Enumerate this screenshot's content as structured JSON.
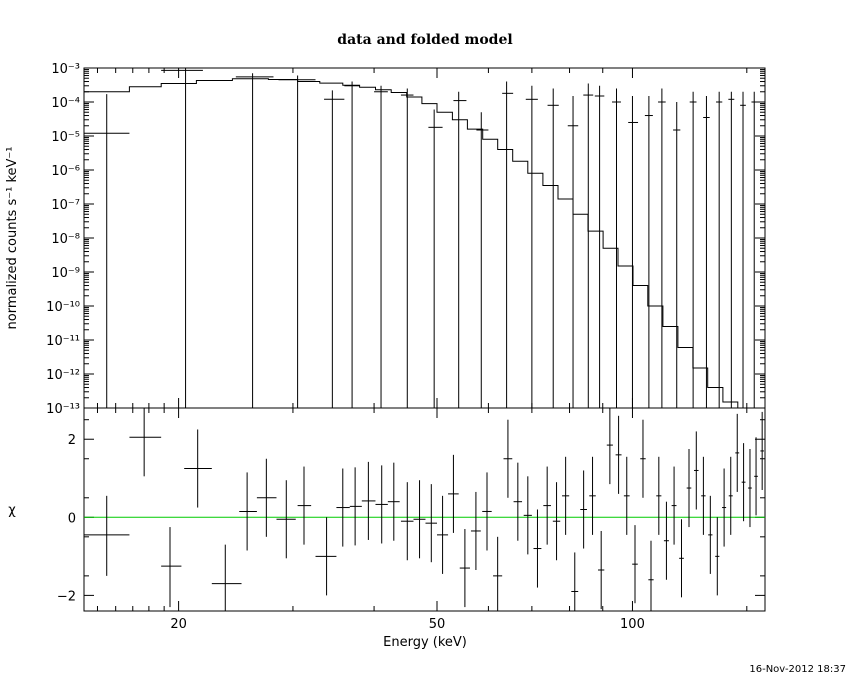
{
  "chart_data": [
    {
      "type": "line",
      "panel": "spectrum",
      "title": "data and folded model",
      "xlabel": "Energy (keV)",
      "ylabel": "normalized counts s⁻¹ keV⁻¹",
      "x_scale": "log",
      "y_scale": "log",
      "xlim": [
        14.3,
        160
      ],
      "ylim": [
        1e-13,
        0.001
      ],
      "y_tick_labels": [
        "10⁻¹³",
        "10⁻¹²",
        "10⁻¹¹",
        "10⁻¹⁰",
        "10⁻⁹",
        "10⁻⁸",
        "10⁻⁷",
        "10⁻⁶",
        "10⁻⁵",
        "10⁻⁴",
        "10⁻³"
      ],
      "y_tick_values": [
        1e-13,
        1e-12,
        1e-11,
        1e-10,
        1e-09,
        1e-08,
        1e-07,
        1e-06,
        1e-05,
        0.0001,
        0.001
      ],
      "model_bins": [
        [
          14.3,
          16.8,
          0.0002
        ],
        [
          16.8,
          18.8,
          0.00028
        ],
        [
          18.8,
          21.3,
          0.00035
        ],
        [
          21.3,
          24.2,
          0.00043
        ],
        [
          24.2,
          27.5,
          0.00048
        ],
        [
          27.5,
          30.5,
          0.00046
        ],
        [
          30.5,
          33.0,
          0.0004
        ],
        [
          33.0,
          35.8,
          0.00036
        ],
        [
          35.8,
          38.0,
          0.00031
        ],
        [
          38.0,
          40.2,
          0.00027
        ],
        [
          40.2,
          42.5,
          0.00023
        ],
        [
          42.5,
          44.9,
          0.00019
        ],
        [
          44.9,
          47.4,
          0.00014
        ],
        [
          47.4,
          50.0,
          9e-05
        ],
        [
          50.0,
          52.8,
          5e-05
        ],
        [
          52.8,
          55.7,
          3e-05
        ],
        [
          55.7,
          58.8,
          1.6e-05
        ],
        [
          58.8,
          62.0,
          8e-06
        ],
        [
          62.0,
          65.4,
          4e-06
        ],
        [
          65.4,
          69.0,
          1.8e-06
        ],
        [
          69.0,
          72.8,
          8e-07
        ],
        [
          72.8,
          76.8,
          3.5e-07
        ],
        [
          76.8,
          81.0,
          1.4e-07
        ],
        [
          81.0,
          85.4,
          5e-08
        ],
        [
          85.4,
          90.1,
          1.6e-08
        ],
        [
          90.1,
          95.0,
          5e-09
        ],
        [
          95.0,
          100.2,
          1.5e-09
        ],
        [
          100.2,
          105.6,
          4e-10
        ],
        [
          105.6,
          111.4,
          1e-10
        ],
        [
          111.4,
          117.5,
          2.5e-11
        ],
        [
          117.5,
          123.9,
          6e-12
        ],
        [
          123.9,
          130.6,
          1.5e-12
        ],
        [
          130.6,
          137.8,
          4e-13
        ],
        [
          137.8,
          145.3,
          1.5e-13
        ],
        [
          145.3,
          153.2,
          1e-13
        ],
        [
          153.2,
          160.0,
          1e-13
        ]
      ],
      "data_points": [
        {
          "x": 15.5,
          "xerr": [
            14.3,
            16.8
          ],
          "y": 1.2e-05,
          "ylo": 1e-13,
          "yhi": 0.00017
        },
        {
          "x": 20.5,
          "xerr": [
            18.8,
            21.8
          ],
          "y": 0.00085,
          "ylo": 1e-13,
          "yhi": 0.001
        },
        {
          "x": 26.0,
          "xerr": [
            24.5,
            28.0
          ],
          "y": 0.00055,
          "ylo": 1e-13,
          "yhi": 0.0007
        },
        {
          "x": 30.5,
          "xerr": [
            28.5,
            32.5
          ],
          "y": 0.00045,
          "ylo": 1e-13,
          "yhi": 0.0006
        },
        {
          "x": 34.5,
          "xerr": [
            33.5,
            36.0
          ],
          "y": 0.00012,
          "ylo": 1e-13,
          "yhi": 0.00022
        },
        {
          "x": 37.0,
          "xerr": [
            36.0,
            38.0
          ],
          "y": 0.0003,
          "ylo": 1e-13,
          "yhi": 0.0004
        },
        {
          "x": 41.0,
          "xerr": [
            40.0,
            42.0
          ],
          "y": 0.0002,
          "ylo": 1e-13,
          "yhi": 0.0003
        },
        {
          "x": 45.0,
          "xerr": [
            44.0,
            46.0
          ],
          "y": 0.00016,
          "ylo": 1e-13,
          "yhi": 0.00025
        },
        {
          "x": 49.5,
          "xerr": [
            48.5,
            51.0
          ],
          "y": 1.8e-05,
          "ylo": 1e-13,
          "yhi": 6e-05
        },
        {
          "x": 54.0,
          "xerr": [
            53.0,
            55.5
          ],
          "y": 0.00011,
          "ylo": 1e-13,
          "yhi": 0.0002
        },
        {
          "x": 58.5,
          "xerr": [
            57.5,
            60.0
          ],
          "y": 1.5e-05,
          "ylo": 1e-13,
          "yhi": 5e-05
        },
        {
          "x": 64.0,
          "xerr": [
            63.0,
            65.5
          ],
          "y": 0.00018,
          "ylo": 1e-13,
          "yhi": 0.0004
        },
        {
          "x": 70.0,
          "xerr": [
            68.5,
            71.5
          ],
          "y": 0.00012,
          "ylo": 1e-13,
          "yhi": 0.0003
        },
        {
          "x": 75.5,
          "xerr": [
            74.0,
            77.0
          ],
          "y": 8e-05,
          "ylo": 1e-13,
          "yhi": 0.00025
        },
        {
          "x": 81.0,
          "xerr": [
            79.5,
            82.5
          ],
          "y": 2e-05,
          "ylo": 1e-13,
          "yhi": 0.00015
        },
        {
          "x": 85.5,
          "xerr": [
            84.0,
            87.0
          ],
          "y": 0.00016,
          "ylo": 1e-13,
          "yhi": 0.00035
        },
        {
          "x": 89.0,
          "xerr": [
            87.5,
            90.5
          ],
          "y": 0.00015,
          "ylo": 1e-13,
          "yhi": 0.0003
        },
        {
          "x": 94.5,
          "xerr": [
            93.0,
            96.0
          ],
          "y": 0.0001,
          "ylo": 1e-13,
          "yhi": 0.00025
        },
        {
          "x": 100.0,
          "xerr": [
            98.5,
            102.0
          ],
          "y": 2.5e-05,
          "ylo": 1e-13,
          "yhi": 0.00015
        },
        {
          "x": 106.0,
          "xerr": [
            104.5,
            107.5
          ],
          "y": 4e-05,
          "ylo": 1e-13,
          "yhi": 0.00015
        },
        {
          "x": 111.0,
          "xerr": [
            109.5,
            112.5
          ],
          "y": 0.0001,
          "ylo": 1e-13,
          "yhi": 0.00025
        },
        {
          "x": 117.0,
          "xerr": [
            115.5,
            118.5
          ],
          "y": 1.5e-05,
          "ylo": 1e-13,
          "yhi": 0.0001
        },
        {
          "x": 124.0,
          "xerr": [
            122.5,
            125.5
          ],
          "y": 0.0001,
          "ylo": 1e-13,
          "yhi": 0.0002
        },
        {
          "x": 130.0,
          "xerr": [
            128.5,
            131.5
          ],
          "y": 3.5e-05,
          "ylo": 1e-13,
          "yhi": 0.00015
        },
        {
          "x": 136.0,
          "xerr": [
            134.5,
            137.5
          ],
          "y": 0.0001,
          "ylo": 1e-13,
          "yhi": 0.0002
        },
        {
          "x": 142.0,
          "xerr": [
            140.5,
            143.5
          ],
          "y": 0.00012,
          "ylo": 1e-13,
          "yhi": 0.0002
        },
        {
          "x": 148.0,
          "xerr": [
            146.5,
            149.5
          ],
          "y": 8e-05,
          "ylo": 1e-13,
          "yhi": 0.0002
        },
        {
          "x": 154.0,
          "xerr": [
            152.5,
            155.5
          ],
          "y": 0.0001,
          "ylo": 1e-13,
          "yhi": 0.0002
        }
      ]
    },
    {
      "type": "scatter",
      "panel": "residuals",
      "ylabel": "χ",
      "xlabel": "Energy (keV)",
      "x_scale": "log",
      "xlim": [
        14.3,
        160
      ],
      "ylim": [
        -2.4,
        2.8
      ],
      "x_tick_labels": [
        "20",
        "50",
        "100"
      ],
      "x_tick_values": [
        20,
        50,
        100
      ],
      "y_tick_labels": [
        "2",
        "0",
        "−2"
      ],
      "y_tick_values": [
        2,
        0,
        -2
      ],
      "zero_line_color": "#00cc00",
      "points": [
        {
          "x": 15.5,
          "xerr": [
            14.3,
            16.8
          ],
          "y": -0.45,
          "ylo": -1.5,
          "yhi": 0.55
        },
        {
          "x": 17.7,
          "xerr": [
            16.8,
            18.8
          ],
          "y": 2.05,
          "ylo": 1.05,
          "yhi": 3.0
        },
        {
          "x": 19.4,
          "xerr": [
            18.8,
            20.2
          ],
          "y": -1.25,
          "ylo": -2.3,
          "yhi": -0.25
        },
        {
          "x": 21.4,
          "xerr": [
            20.4,
            22.5
          ],
          "y": 1.25,
          "ylo": 0.25,
          "yhi": 2.25
        },
        {
          "x": 23.6,
          "xerr": [
            22.5,
            25.0
          ],
          "y": -1.7,
          "ylo": -2.7,
          "yhi": -0.7
        },
        {
          "x": 25.5,
          "xerr": [
            24.8,
            26.4
          ],
          "y": 0.15,
          "ylo": -0.85,
          "yhi": 1.15
        },
        {
          "x": 27.3,
          "xerr": [
            26.4,
            28.3
          ],
          "y": 0.5,
          "ylo": -0.5,
          "yhi": 1.5
        },
        {
          "x": 29.3,
          "xerr": [
            28.3,
            30.3
          ],
          "y": -0.05,
          "ylo": -1.05,
          "yhi": 0.95
        },
        {
          "x": 31.2,
          "xerr": [
            30.5,
            32.0
          ],
          "y": 0.3,
          "ylo": -0.7,
          "yhi": 1.3
        },
        {
          "x": 33.8,
          "xerr": [
            32.5,
            35.0
          ],
          "y": -1.0,
          "ylo": -2.0,
          "yhi": 0.0
        },
        {
          "x": 35.8,
          "xerr": [
            35.0,
            36.7
          ],
          "y": 0.25,
          "ylo": -0.75,
          "yhi": 1.25
        },
        {
          "x": 37.4,
          "xerr": [
            36.7,
            38.3
          ],
          "y": 0.28,
          "ylo": -0.72,
          "yhi": 1.28
        },
        {
          "x": 39.2,
          "xerr": [
            38.3,
            40.2
          ],
          "y": 0.42,
          "ylo": -0.58,
          "yhi": 1.42
        },
        {
          "x": 41.1,
          "xerr": [
            40.2,
            42.0
          ],
          "y": 0.33,
          "ylo": -0.67,
          "yhi": 1.33
        },
        {
          "x": 42.9,
          "xerr": [
            42.0,
            43.8
          ],
          "y": 0.4,
          "ylo": -0.6,
          "yhi": 1.4
        },
        {
          "x": 45.0,
          "xerr": [
            44.0,
            46.0
          ],
          "y": -0.1,
          "ylo": -1.1,
          "yhi": 0.9
        },
        {
          "x": 47.0,
          "xerr": [
            46.0,
            48.0
          ],
          "y": -0.05,
          "ylo": -1.05,
          "yhi": 0.95
        },
        {
          "x": 49.0,
          "xerr": [
            48.0,
            50.0
          ],
          "y": -0.15,
          "ylo": -1.15,
          "yhi": 0.85
        },
        {
          "x": 51.0,
          "xerr": [
            50.0,
            52.0
          ],
          "y": -0.45,
          "ylo": -1.45,
          "yhi": 0.55
        },
        {
          "x": 53.0,
          "xerr": [
            52.0,
            54.0
          ],
          "y": 0.6,
          "ylo": -0.4,
          "yhi": 1.6
        },
        {
          "x": 55.2,
          "xerr": [
            54.2,
            56.2
          ],
          "y": -1.3,
          "ylo": -2.3,
          "yhi": -0.3
        },
        {
          "x": 57.4,
          "xerr": [
            56.4,
            58.4
          ],
          "y": -0.35,
          "ylo": -1.35,
          "yhi": 0.65
        },
        {
          "x": 59.7,
          "xerr": [
            58.7,
            60.7
          ],
          "y": 0.15,
          "ylo": -0.85,
          "yhi": 1.15
        },
        {
          "x": 62.0,
          "xerr": [
            61.0,
            63.0
          ],
          "y": -1.5,
          "ylo": -2.5,
          "yhi": -0.5
        },
        {
          "x": 64.3,
          "xerr": [
            63.3,
            65.3
          ],
          "y": 1.5,
          "ylo": 0.5,
          "yhi": 2.5
        },
        {
          "x": 66.6,
          "xerr": [
            65.6,
            67.6
          ],
          "y": 0.4,
          "ylo": -0.6,
          "yhi": 1.4
        },
        {
          "x": 69.0,
          "xerr": [
            68.0,
            70.0
          ],
          "y": 0.05,
          "ylo": -0.95,
          "yhi": 1.05
        },
        {
          "x": 71.4,
          "xerr": [
            70.4,
            72.4
          ],
          "y": -0.8,
          "ylo": -1.8,
          "yhi": 0.2
        },
        {
          "x": 73.9,
          "xerr": [
            72.9,
            74.9
          ],
          "y": 0.3,
          "ylo": -0.7,
          "yhi": 1.3
        },
        {
          "x": 76.4,
          "xerr": [
            75.4,
            77.4
          ],
          "y": -0.1,
          "ylo": -1.1,
          "yhi": 0.9
        },
        {
          "x": 78.9,
          "xerr": [
            77.9,
            79.9
          ],
          "y": 0.55,
          "ylo": -0.45,
          "yhi": 1.55
        },
        {
          "x": 81.5,
          "xerr": [
            80.5,
            82.5
          ],
          "y": -1.9,
          "ylo": -2.9,
          "yhi": -0.9
        },
        {
          "x": 84.1,
          "xerr": [
            83.1,
            85.1
          ],
          "y": 0.2,
          "ylo": -0.8,
          "yhi": 1.2
        },
        {
          "x": 86.8,
          "xerr": [
            85.8,
            87.8
          ],
          "y": 0.55,
          "ylo": -0.45,
          "yhi": 1.55
        },
        {
          "x": 89.5,
          "xerr": [
            88.5,
            90.5
          ],
          "y": -1.35,
          "ylo": -2.35,
          "yhi": -0.35
        },
        {
          "x": 92.3,
          "xerr": [
            91.3,
            93.3
          ],
          "y": 1.85,
          "ylo": 0.85,
          "yhi": 2.85
        },
        {
          "x": 95.2,
          "xerr": [
            94.2,
            96.2
          ],
          "y": 1.6,
          "ylo": 0.6,
          "yhi": 2.6
        },
        {
          "x": 98.0,
          "xerr": [
            97.0,
            99.0
          ],
          "y": 0.55,
          "ylo": -0.45,
          "yhi": 1.55
        },
        {
          "x": 100.9,
          "xerr": [
            99.9,
            101.9
          ],
          "y": -1.2,
          "ylo": -2.2,
          "yhi": -0.2
        },
        {
          "x": 103.8,
          "xerr": [
            102.8,
            104.8
          ],
          "y": 1.5,
          "ylo": 0.5,
          "yhi": 2.5
        },
        {
          "x": 106.8,
          "xerr": [
            105.8,
            107.8
          ],
          "y": -1.6,
          "ylo": -2.6,
          "yhi": -0.6
        },
        {
          "x": 109.8,
          "xerr": [
            108.8,
            110.8
          ],
          "y": 0.55,
          "ylo": -0.45,
          "yhi": 1.55
        },
        {
          "x": 112.8,
          "xerr": [
            111.8,
            113.8
          ],
          "y": -0.6,
          "ylo": -1.6,
          "yhi": 0.4
        },
        {
          "x": 115.9,
          "xerr": [
            114.9,
            116.9
          ],
          "y": 0.3,
          "ylo": -0.7,
          "yhi": 1.3
        },
        {
          "x": 119.0,
          "xerr": [
            118.0,
            120.0
          ],
          "y": -1.05,
          "ylo": -2.05,
          "yhi": -0.05
        },
        {
          "x": 122.2,
          "xerr": [
            121.2,
            123.2
          ],
          "y": 0.75,
          "ylo": -0.25,
          "yhi": 1.75
        },
        {
          "x": 125.4,
          "xerr": [
            124.4,
            126.4
          ],
          "y": 1.2,
          "ylo": 0.2,
          "yhi": 2.2
        },
        {
          "x": 128.6,
          "xerr": [
            127.6,
            129.6
          ],
          "y": 0.55,
          "ylo": -0.45,
          "yhi": 1.55
        },
        {
          "x": 131.8,
          "xerr": [
            130.8,
            132.8
          ],
          "y": -0.45,
          "ylo": -1.45,
          "yhi": 0.55
        },
        {
          "x": 135.1,
          "xerr": [
            134.1,
            136.1
          ],
          "y": -1.0,
          "ylo": -2.0,
          "yhi": 0.0
        },
        {
          "x": 138.4,
          "xerr": [
            137.4,
            139.4
          ],
          "y": 0.25,
          "ylo": -0.75,
          "yhi": 1.25
        },
        {
          "x": 141.7,
          "xerr": [
            140.7,
            142.7
          ],
          "y": 0.55,
          "ylo": -0.45,
          "yhi": 1.55
        },
        {
          "x": 145.0,
          "xerr": [
            144.0,
            146.0
          ],
          "y": 1.65,
          "ylo": 0.65,
          "yhi": 2.65
        },
        {
          "x": 148.3,
          "xerr": [
            147.3,
            149.3
          ],
          "y": 0.9,
          "ylo": -0.1,
          "yhi": 1.9
        },
        {
          "x": 151.7,
          "xerr": [
            150.7,
            152.7
          ],
          "y": 0.75,
          "ylo": -0.25,
          "yhi": 1.75
        },
        {
          "x": 155.0,
          "xerr": [
            154.0,
            156.0
          ],
          "y": 1.05,
          "ylo": 0.05,
          "yhi": 2.05
        },
        {
          "x": 158.4,
          "xerr": [
            157.4,
            159.4
          ],
          "y": 1.7,
          "ylo": 0.7,
          "yhi": 2.7
        }
      ]
    }
  ],
  "timestamp": "16-Nov-2012 18:37"
}
